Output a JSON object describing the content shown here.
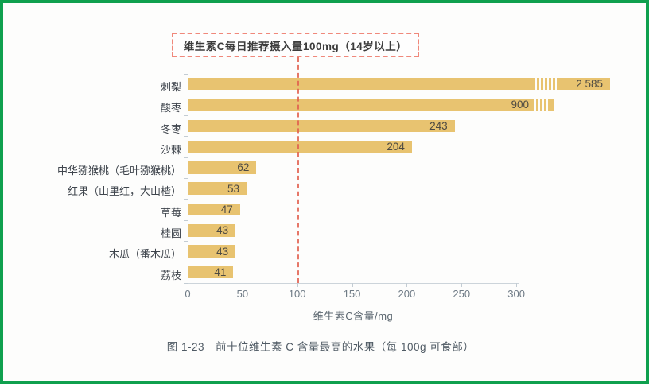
{
  "frame": {
    "border_color": "#0fa04e",
    "background_color": "#fdfdfc"
  },
  "annotation": {
    "text": "维生素C每日推荐摄入量100mg（14岁以上）",
    "reference_value_mg": 100,
    "box_border_color": "#f0887b",
    "line_color": "#e2604f"
  },
  "chart_data": {
    "type": "bar",
    "orientation": "horizontal",
    "title": "",
    "xlabel": "维生素C含量/mg",
    "ylabel": "",
    "xlim": [
      0,
      300
    ],
    "x_ticks": [
      0,
      50,
      100,
      150,
      200,
      250,
      300
    ],
    "grid": false,
    "legend": false,
    "bar_color": "#e8c370",
    "categories": [
      "刺梨",
      "酸枣",
      "冬枣",
      "沙棘",
      "中华猕猴桃（毛叶猕猴桃）",
      "红果（山里红，大山楂）",
      "草莓",
      "桂圆",
      "木瓜（番木瓜）",
      "荔枝"
    ],
    "values": [
      2585,
      900,
      243,
      204,
      62,
      53,
      47,
      43,
      43,
      41
    ],
    "value_labels": [
      "2 585",
      "900",
      "243",
      "204",
      "62",
      "53",
      "47",
      "43",
      "43",
      "41"
    ],
    "clipped_bars": [
      true,
      true,
      false,
      false,
      false,
      false,
      false,
      false,
      false,
      false
    ],
    "note": "bars exceeding the 0-300 axis range are clipped with white break marks"
  },
  "caption": "图 1-23　前十位维生素 C 含量最高的水果（每 100g 可食部）"
}
